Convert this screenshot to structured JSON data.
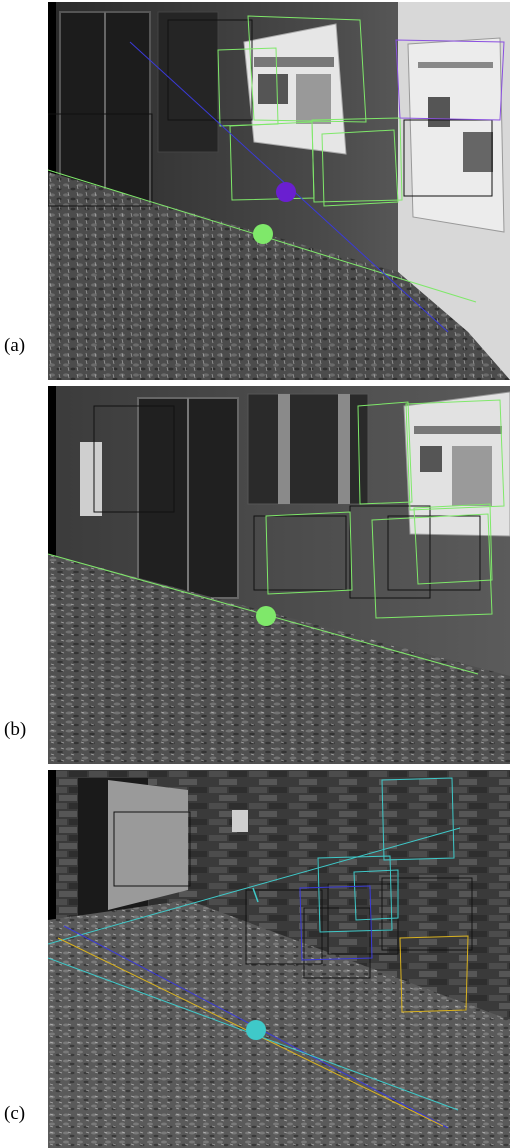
{
  "panels": [
    {
      "label": "(a)"
    },
    {
      "label": "(b)"
    },
    {
      "label": "(c)"
    }
  ],
  "colors": {
    "green": "#7fe86a",
    "purple": "#6a1fd0",
    "black": "#111111",
    "cyan": "#3fc9c9",
    "blue": "#3a3ad8",
    "yellow": "#d9b21f"
  }
}
